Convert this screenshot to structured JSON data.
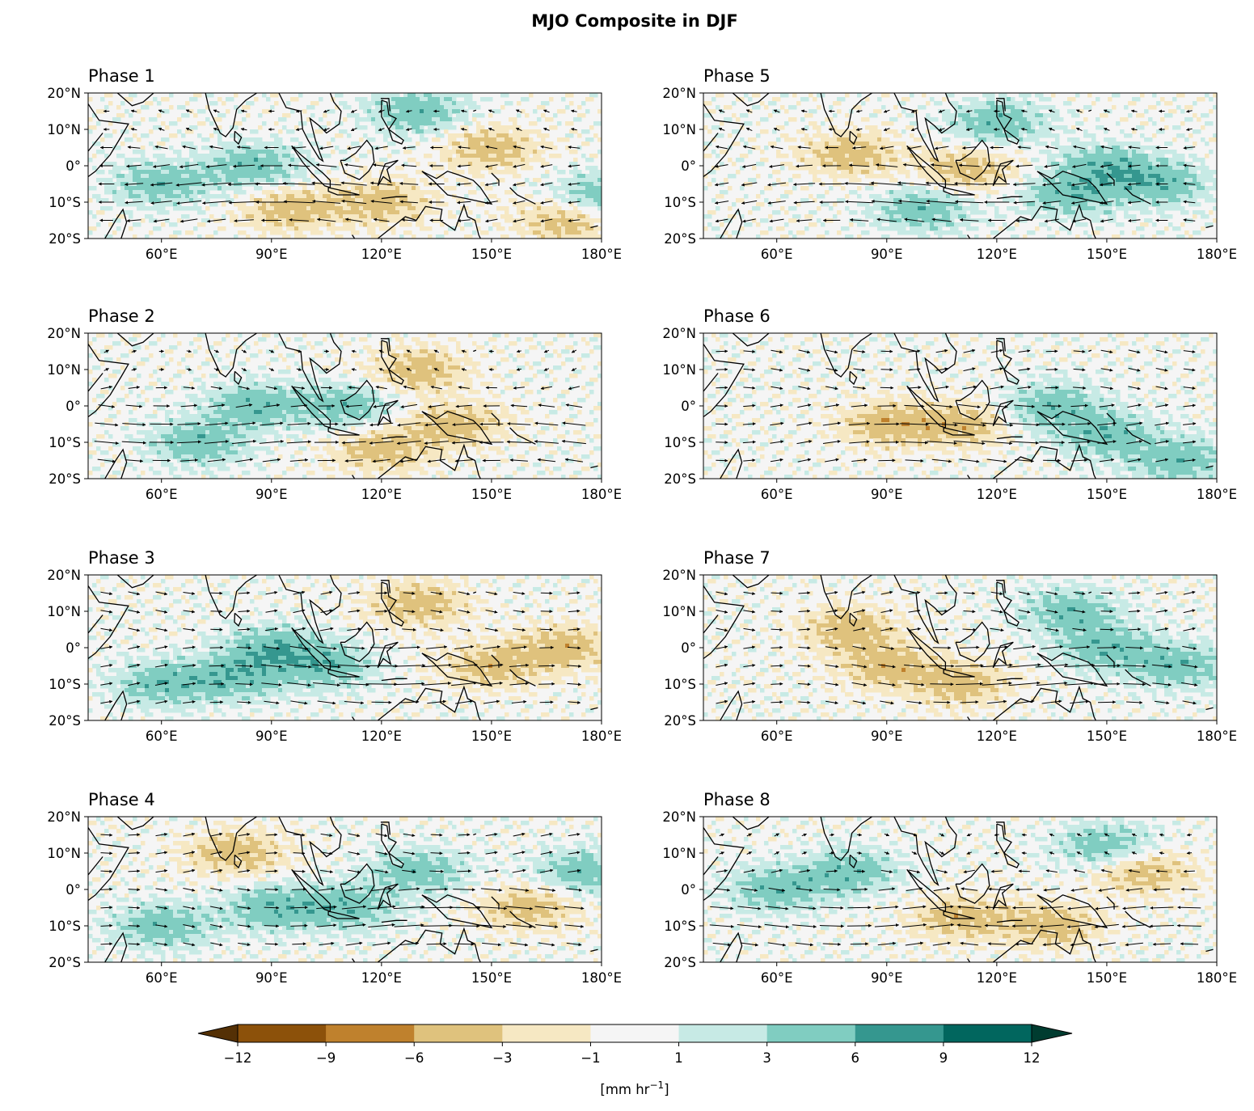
{
  "title": "MJO Composite in DJF",
  "lat_ticks": [
    "20°N",
    "10°N",
    "0°",
    "10°S",
    "20°S"
  ],
  "lon_ticks": [
    "60°E",
    "90°E",
    "120°E",
    "150°E",
    "180°E"
  ],
  "panels": [
    {
      "title": "Phase 1",
      "wet": [
        [
          60,
          -5
        ],
        [
          85,
          0
        ],
        [
          130,
          15
        ],
        [
          180,
          -8
        ]
      ],
      "dry": [
        [
          120,
          -10
        ],
        [
          150,
          5
        ],
        [
          170,
          -15
        ],
        [
          95,
          -12
        ]
      ],
      "wind": "easterly"
    },
    {
      "title": "Phase 5",
      "wet": [
        [
          120,
          12
        ],
        [
          140,
          -8
        ],
        [
          150,
          0
        ],
        [
          165,
          -5
        ],
        [
          100,
          -12
        ]
      ],
      "dry": [
        [
          80,
          3
        ],
        [
          112,
          -1
        ]
      ],
      "wind": "easterly"
    },
    {
      "title": "Phase 2",
      "wet": [
        [
          85,
          0
        ],
        [
          70,
          -10
        ],
        [
          110,
          0
        ]
      ],
      "dry": [
        [
          140,
          -5
        ],
        [
          130,
          10
        ],
        [
          120,
          -12
        ]
      ],
      "wind": "mixed"
    },
    {
      "title": "Phase 6",
      "wet": [
        [
          150,
          -8
        ],
        [
          135,
          0
        ],
        [
          170,
          -15
        ]
      ],
      "dry": [
        [
          90,
          -5
        ],
        [
          110,
          -5
        ]
      ],
      "wind": "westerly"
    },
    {
      "title": "Phase 3",
      "wet": [
        [
          90,
          0
        ],
        [
          80,
          -8
        ],
        [
          60,
          -10
        ],
        [
          105,
          -5
        ]
      ],
      "dry": [
        [
          130,
          12
        ],
        [
          150,
          -5
        ],
        [
          170,
          0
        ]
      ],
      "wind": "westerly"
    },
    {
      "title": "Phase 7",
      "wet": [
        [
          150,
          0
        ],
        [
          170,
          -5
        ],
        [
          140,
          10
        ]
      ],
      "dry": [
        [
          90,
          -5
        ],
        [
          80,
          5
        ],
        [
          110,
          -10
        ]
      ],
      "wind": "westerly"
    },
    {
      "title": "Phase 4",
      "wet": [
        [
          110,
          -5
        ],
        [
          90,
          -5
        ],
        [
          130,
          5
        ],
        [
          175,
          5
        ],
        [
          60,
          -10
        ]
      ],
      "dry": [
        [
          160,
          -5
        ],
        [
          80,
          10
        ]
      ],
      "wind": "westerly"
    },
    {
      "title": "Phase 8",
      "wet": [
        [
          60,
          0
        ],
        [
          80,
          5
        ],
        [
          150,
          12
        ]
      ],
      "dry": [
        [
          135,
          -10
        ],
        [
          110,
          -8
        ],
        [
          160,
          5
        ]
      ],
      "wind": "mixed"
    }
  ],
  "colorbar": {
    "labels": [
      "−12",
      "−9",
      "−6",
      "−3",
      "−1",
      "1",
      "3",
      "6",
      "9",
      "12"
    ],
    "colors": [
      "#8c510a",
      "#bf812d",
      "#dfc27d",
      "#f6e8c3",
      "#f5f5f5",
      "#c7eae5",
      "#80cdc1",
      "#35978f",
      "#01665e"
    ],
    "under_color": "#543005",
    "over_color": "#003c30",
    "label": "[mm hr−1]",
    "label_main": "[mm hr",
    "label_sup": "−1",
    "label_end": "]"
  }
}
